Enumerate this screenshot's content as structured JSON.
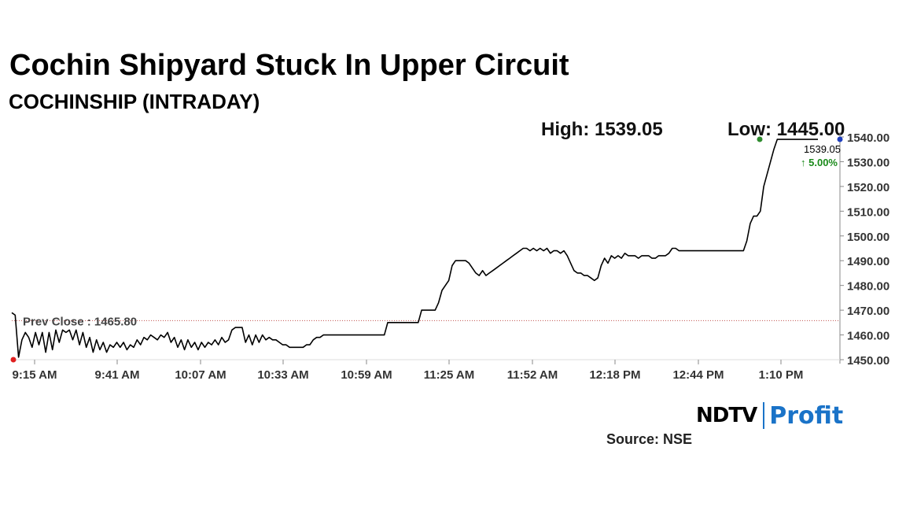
{
  "header": {
    "title": "Cochin Shipyard Stuck In Upper Circuit",
    "subtitle": "COCHINSHIP (INTRADAY)",
    "high_text": "High: 1539.05",
    "low_text": "Low: 1445.00"
  },
  "footer": {
    "source": "Source: NSE",
    "logo_left": "NDTV",
    "logo_right": "Profit"
  },
  "colors": {
    "line": "#000000",
    "prev_close_line": "#c0504d",
    "high_marker": "#2e8b2e",
    "low_marker": "#e02020",
    "last_marker": "#1f3fbf",
    "change_text": "#1a8a1a",
    "brand_blue": "#1a73c8",
    "brand_pink": "#e6357a"
  },
  "chart_data": {
    "type": "line",
    "title": "COCHINSHIP (INTRADAY)",
    "ylim": [
      1450,
      1540
    ],
    "y_ticks": [
      "1450.00",
      "1460.00",
      "1470.00",
      "1480.00",
      "1490.00",
      "1500.00",
      "1510.00",
      "1520.00",
      "1530.00",
      "1540.00"
    ],
    "x_ticks": [
      "9:15 AM",
      "9:41 AM",
      "10:07 AM",
      "10:33 AM",
      "10:59 AM",
      "11:25 AM",
      "11:52 AM",
      "12:18 PM",
      "12:44 PM",
      "1:10 PM"
    ],
    "prev_close": 1465.8,
    "prev_close_label": "Prev Close : 1465.80",
    "last_price": "1539.05",
    "change_pct": "5.00%",
    "change_arrow": "↑",
    "grid": false,
    "series": [
      {
        "values": [
          1469,
          1468,
          1451,
          1458,
          1461,
          1459,
          1455,
          1461,
          1456,
          1461,
          1453,
          1461,
          1454,
          1462,
          1457,
          1462,
          1461,
          1462,
          1458,
          1462,
          1456,
          1461,
          1455,
          1459,
          1453,
          1458,
          1454,
          1457,
          1453,
          1456,
          1455,
          1457,
          1455,
          1457,
          1454,
          1456,
          1455,
          1458,
          1456,
          1459,
          1458,
          1460,
          1459,
          1458,
          1460,
          1459,
          1461,
          1457,
          1459,
          1455,
          1458,
          1454,
          1458,
          1455,
          1457,
          1454,
          1457,
          1455,
          1457,
          1456,
          1458,
          1456,
          1459,
          1457,
          1458,
          1462,
          1463,
          1463,
          1463,
          1457,
          1460,
          1456,
          1460,
          1457,
          1460,
          1458,
          1459,
          1458,
          1458,
          1457,
          1456,
          1456,
          1455,
          1455,
          1455,
          1455,
          1455,
          1456,
          1456,
          1458,
          1459,
          1459,
          1460,
          1460,
          1460,
          1460,
          1460,
          1460,
          1460,
          1460,
          1460,
          1460,
          1460,
          1460,
          1460,
          1460,
          1460,
          1460,
          1460,
          1460,
          1460,
          1465,
          1465,
          1465,
          1465,
          1465,
          1465,
          1465,
          1465,
          1465,
          1465,
          1470,
          1470,
          1470,
          1470,
          1470,
          1473,
          1478,
          1480,
          1482,
          1488,
          1490,
          1490,
          1490,
          1490,
          1489,
          1487,
          1485,
          1484,
          1486,
          1484,
          1485,
          1486,
          1487,
          1488,
          1489,
          1490,
          1491,
          1492,
          1493,
          1494,
          1495,
          1495,
          1494,
          1495,
          1494,
          1495,
          1494,
          1495,
          1493,
          1494,
          1494,
          1493,
          1494,
          1492,
          1489,
          1486,
          1485,
          1485,
          1484,
          1484,
          1483,
          1482,
          1483,
          1488,
          1491,
          1489,
          1492,
          1491,
          1492,
          1491,
          1493,
          1492,
          1492,
          1492,
          1491,
          1492,
          1492,
          1492,
          1491,
          1491,
          1492,
          1492,
          1492,
          1493,
          1495,
          1495,
          1494,
          1494,
          1494,
          1494,
          1494,
          1494,
          1494,
          1494,
          1494,
          1494,
          1494,
          1494,
          1494,
          1494,
          1494,
          1494,
          1494,
          1494,
          1494,
          1494,
          1498,
          1505,
          1508,
          1508,
          1510,
          1520,
          1525,
          1530,
          1535,
          1539,
          1539,
          1539,
          1539,
          1539,
          1539,
          1539,
          1539,
          1539,
          1539,
          1539,
          1539,
          1539
        ]
      }
    ]
  }
}
